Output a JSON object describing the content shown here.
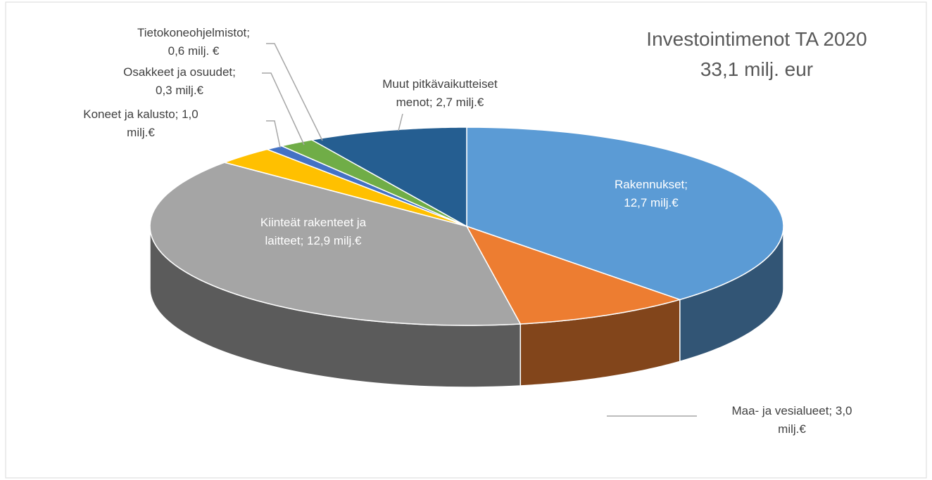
{
  "chart_data": {
    "type": "pie",
    "style": "3d",
    "title": "Investointimenot TA 2020",
    "subtitle": "33,1 milj. eur",
    "values": [
      12.7,
      3.0,
      12.9,
      1.0,
      0.3,
      0.6,
      2.7
    ],
    "value_labels": [
      "Rakennukset; 12,7 milj.€",
      "Maa- ja vesialueet; 3,0 milj.€",
      "Kiinteät rakenteet ja laitteet; 12,9 milj.€",
      "Koneet ja kalusto; 1,0 milj.€",
      "Osakkeet ja osuudet; 0,3 milj.€",
      "Tietokoneohjelmistot; 0,6 milj. €",
      "Muut pitkävaikutteiset menot; 2,7 milj.€"
    ],
    "colors": [
      "#5b9bd5",
      "#ed7d31",
      "#a5a5a5",
      "#ffc000",
      "#4472c4",
      "#70ad47",
      "#255e91"
    ]
  }
}
